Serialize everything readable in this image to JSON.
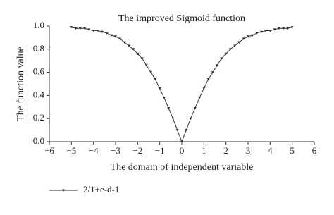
{
  "chart_data": {
    "type": "line",
    "title": "The improved Sigmoid function",
    "x_label": "The domain of independent variable",
    "y_label": "The function value",
    "x": [
      -5,
      -4.8,
      -4.6,
      -4.4,
      -4.2,
      -4,
      -3.8,
      -3.6,
      -3.4,
      -3.2,
      -3,
      -2.8,
      -2.6,
      -2.4,
      -2.2,
      -2,
      -1.8,
      -1.6,
      -1.4,
      -1.2,
      -1,
      -0.8,
      -0.6,
      -0.4,
      -0.2,
      0,
      0.2,
      0.4,
      0.6,
      0.8,
      1,
      1.2,
      1.4,
      1.6,
      1.8,
      2,
      2.2,
      2.4,
      2.6,
      2.8,
      3,
      3.2,
      3.4,
      3.6,
      3.8,
      4,
      4.2,
      4.4,
      4.6,
      4.8,
      5
    ],
    "series": [
      {
        "name": "2/1+e-d-1",
        "color": "#333333",
        "values": [
          0.99,
          0.98,
          0.98,
          0.98,
          0.97,
          0.96,
          0.96,
          0.95,
          0.94,
          0.92,
          0.91,
          0.89,
          0.86,
          0.83,
          0.8,
          0.76,
          0.72,
          0.66,
          0.6,
          0.54,
          0.46,
          0.38,
          0.29,
          0.2,
          0.1,
          0,
          0.1,
          0.2,
          0.29,
          0.38,
          0.46,
          0.54,
          0.6,
          0.66,
          0.72,
          0.76,
          0.8,
          0.83,
          0.86,
          0.89,
          0.91,
          0.92,
          0.94,
          0.95,
          0.96,
          0.96,
          0.97,
          0.98,
          0.98,
          0.98,
          0.99
        ]
      }
    ],
    "xlim": [
      -6,
      6
    ],
    "xticks": [
      {
        "value": -6,
        "label": "−6"
      },
      {
        "value": -5,
        "label": "−5"
      },
      {
        "value": -4,
        "label": "−4"
      },
      {
        "value": -3,
        "label": "−3"
      },
      {
        "value": -2,
        "label": "−2"
      },
      {
        "value": -1,
        "label": "−1"
      },
      0,
      1,
      2,
      3,
      4,
      5,
      6
    ],
    "ylim": [
      0,
      1
    ],
    "yticks": [
      {
        "value": 0,
        "label": "0.0"
      },
      {
        "value": 0.2,
        "label": "0.2"
      },
      {
        "value": 0.4,
        "label": "0.4"
      },
      {
        "value": 0.6,
        "label": "0.6"
      },
      {
        "value": 0.8,
        "label": "0.8"
      },
      {
        "value": 1,
        "label": "1.0"
      }
    ],
    "grid": false,
    "legend": "bottom-left"
  }
}
